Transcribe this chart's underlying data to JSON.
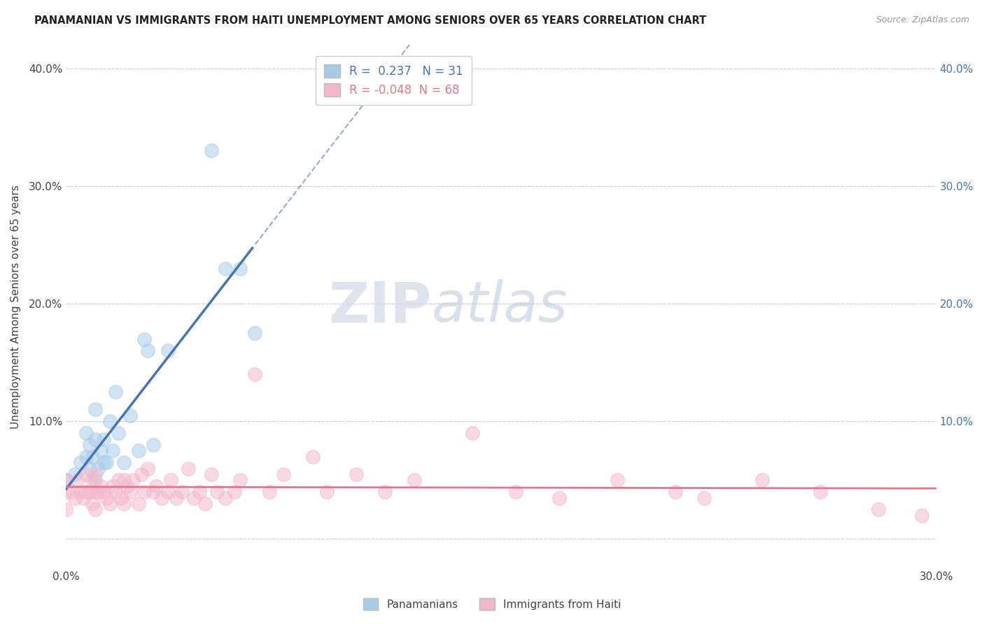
{
  "title": "PANAMANIAN VS IMMIGRANTS FROM HAITI UNEMPLOYMENT AMONG SENIORS OVER 65 YEARS CORRELATION CHART",
  "source": "Source: ZipAtlas.com",
  "ylabel": "Unemployment Among Seniors over 65 years",
  "xlim": [
    0.0,
    0.3
  ],
  "ylim": [
    -0.025,
    0.42
  ],
  "r_blue": 0.237,
  "n_blue": 31,
  "r_pink": -0.048,
  "n_pink": 68,
  "blue_color": "#a8cce8",
  "pink_color": "#f4b8cc",
  "blue_line_color": "#4475b5",
  "pink_line_color": "#e8748a",
  "legend_label_blue": "Panamanians",
  "legend_label_pink": "Immigrants from Haiti",
  "watermark_zip": "ZIP",
  "watermark_atlas": "atlas",
  "blue_x": [
    0.0,
    0.003,
    0.005,
    0.007,
    0.007,
    0.008,
    0.008,
    0.009,
    0.01,
    0.01,
    0.01,
    0.011,
    0.012,
    0.013,
    0.013,
    0.014,
    0.015,
    0.016,
    0.017,
    0.018,
    0.02,
    0.022,
    0.025,
    0.027,
    0.028,
    0.03,
    0.035,
    0.05,
    0.055,
    0.06,
    0.065
  ],
  "blue_y": [
    0.05,
    0.055,
    0.065,
    0.07,
    0.09,
    0.06,
    0.08,
    0.07,
    0.05,
    0.085,
    0.11,
    0.06,
    0.075,
    0.065,
    0.085,
    0.065,
    0.1,
    0.075,
    0.125,
    0.09,
    0.065,
    0.105,
    0.075,
    0.17,
    0.16,
    0.08,
    0.16,
    0.33,
    0.23,
    0.23,
    0.175
  ],
  "pink_x": [
    0.0,
    0.0,
    0.0,
    0.002,
    0.003,
    0.004,
    0.005,
    0.006,
    0.007,
    0.007,
    0.008,
    0.009,
    0.009,
    0.01,
    0.01,
    0.01,
    0.011,
    0.012,
    0.013,
    0.014,
    0.015,
    0.016,
    0.017,
    0.018,
    0.019,
    0.02,
    0.02,
    0.021,
    0.022,
    0.023,
    0.025,
    0.026,
    0.027,
    0.028,
    0.03,
    0.031,
    0.033,
    0.035,
    0.036,
    0.038,
    0.04,
    0.042,
    0.044,
    0.046,
    0.048,
    0.05,
    0.052,
    0.055,
    0.058,
    0.06,
    0.065,
    0.07,
    0.075,
    0.085,
    0.09,
    0.1,
    0.11,
    0.12,
    0.14,
    0.155,
    0.17,
    0.19,
    0.21,
    0.22,
    0.24,
    0.26,
    0.28,
    0.295
  ],
  "pink_y": [
    0.025,
    0.04,
    0.05,
    0.04,
    0.035,
    0.05,
    0.04,
    0.035,
    0.04,
    0.055,
    0.04,
    0.03,
    0.05,
    0.025,
    0.04,
    0.055,
    0.04,
    0.045,
    0.04,
    0.035,
    0.03,
    0.045,
    0.04,
    0.05,
    0.035,
    0.03,
    0.05,
    0.045,
    0.04,
    0.05,
    0.03,
    0.055,
    0.04,
    0.06,
    0.04,
    0.045,
    0.035,
    0.04,
    0.05,
    0.035,
    0.04,
    0.06,
    0.035,
    0.04,
    0.03,
    0.055,
    0.04,
    0.035,
    0.04,
    0.05,
    0.14,
    0.04,
    0.055,
    0.07,
    0.04,
    0.055,
    0.04,
    0.05,
    0.09,
    0.04,
    0.035,
    0.05,
    0.04,
    0.035,
    0.05,
    0.04,
    0.025,
    0.02
  ],
  "background_color": "#ffffff",
  "grid_color": "#cccccc",
  "x_tick_positions": [
    0.0,
    0.05,
    0.1,
    0.15,
    0.2,
    0.25,
    0.3
  ],
  "x_tick_labels": [
    "0.0%",
    "",
    "",
    "",
    "",
    "",
    "30.0%"
  ],
  "y_tick_positions": [
    0.0,
    0.1,
    0.2,
    0.3,
    0.4
  ],
  "y_tick_labels_left": [
    "",
    "10.0%",
    "20.0%",
    "30.0%",
    "40.0%"
  ],
  "y_tick_labels_right": [
    "",
    "10.0%",
    "20.0%",
    "30.0%",
    "40.0%"
  ]
}
